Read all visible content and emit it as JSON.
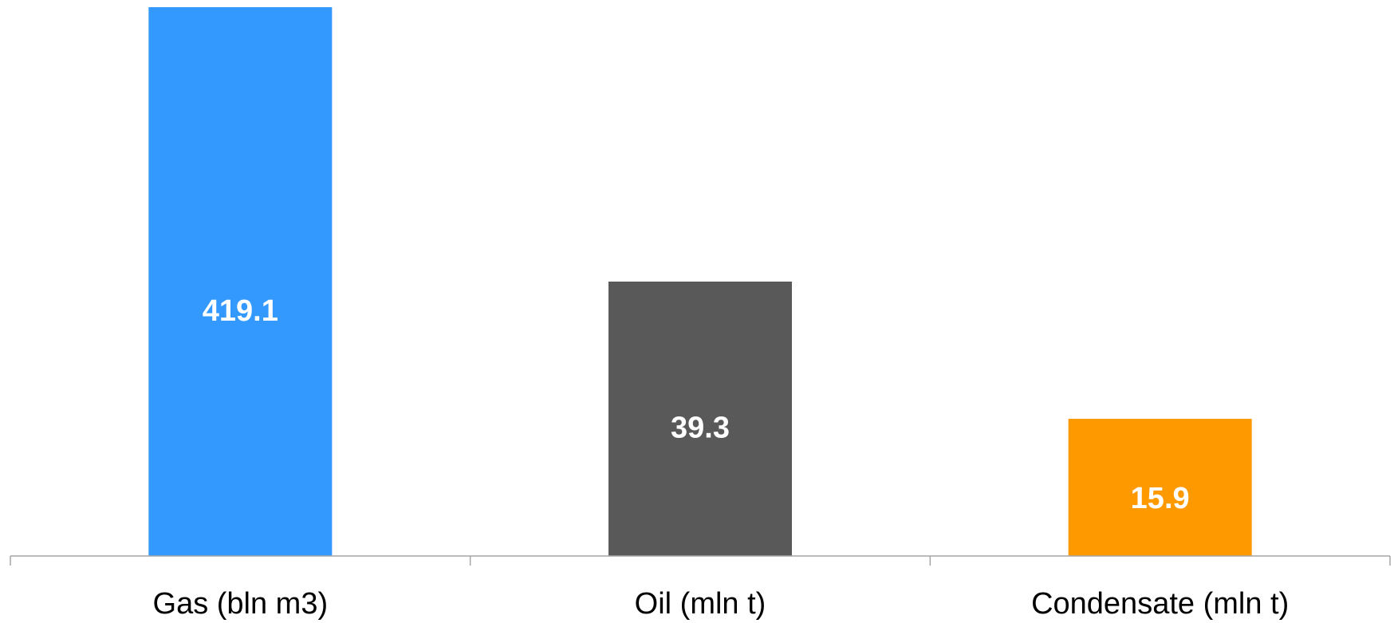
{
  "chart_data": {
    "type": "bar",
    "categories": [
      "Gas (bln m3)",
      "Oil (mln t)",
      "Condensate (mln t)"
    ],
    "values": [
      419.1,
      39.3,
      15.9
    ],
    "value_labels": [
      "419.1",
      "39.3",
      "15.9"
    ],
    "colors": [
      "#3399ff",
      "#595959",
      "#ff9900"
    ],
    "title": "",
    "xlabel": "",
    "ylabel": "",
    "grid": false,
    "legend": "none",
    "note": "Each category uses its own unit; bars are not drawn on a common scale."
  }
}
